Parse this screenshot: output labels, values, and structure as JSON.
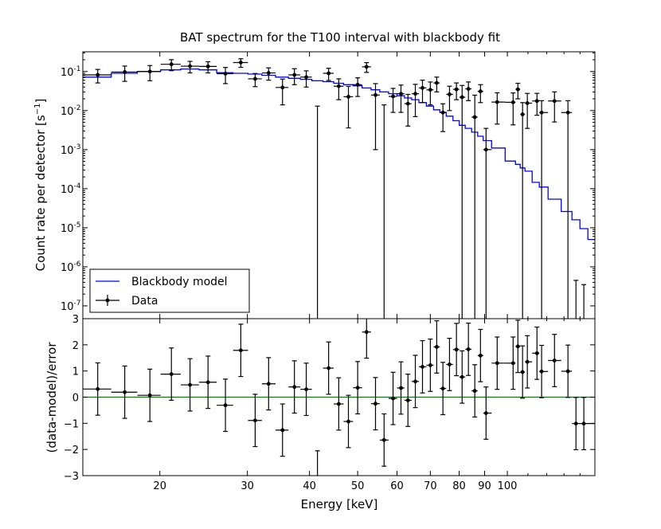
{
  "chart_data": {
    "type": "scatter",
    "title": "BAT spectrum for the T100 interval with blackbody fit",
    "xlabel": "Energy [keV]",
    "xscale": "log",
    "xlim": [
      14,
      150
    ],
    "x_ticks": [
      {
        "value": 20,
        "label": "20"
      },
      {
        "value": 30,
        "label": "30"
      },
      {
        "value": 40,
        "label": "40"
      },
      {
        "value": 50,
        "label": "50"
      },
      {
        "value": 60,
        "label": "60"
      },
      {
        "value": 70,
        "label": "70"
      },
      {
        "value": 80,
        "label": "80"
      },
      {
        "value": 90,
        "label": "90"
      },
      {
        "value": 100,
        "label": "100"
      }
    ],
    "colors": {
      "model": "#0000ff",
      "zero_line": "#008000",
      "data": "#000000"
    },
    "top_panel": {
      "ylabel": "Count rate per detector [s",
      "ylabel_exp": "−1",
      "ylabel_end": "]",
      "yscale": "log",
      "ylim": [
        4.7e-08,
        0.32
      ],
      "y_ticks": [
        {
          "value": 0.1,
          "base": "10",
          "exp": "-1"
        },
        {
          "value": 0.01,
          "base": "10",
          "exp": "-2"
        },
        {
          "value": 0.001,
          "base": "10",
          "exp": "-3"
        },
        {
          "value": 0.0001,
          "base": "10",
          "exp": "-4"
        },
        {
          "value": 1e-05,
          "base": "10",
          "exp": "-5"
        },
        {
          "value": 1e-06,
          "base": "10",
          "exp": "-6"
        },
        {
          "value": 1e-07,
          "base": "10",
          "exp": "-7"
        }
      ],
      "legend": {
        "placement": "lower-left",
        "entries": [
          {
            "label": "Blackbody model",
            "kind": "line"
          },
          {
            "label": "Data",
            "kind": "errorbar"
          }
        ]
      }
    },
    "bottom_panel": {
      "ylabel": "(data-model)/error",
      "ylim": [
        -3,
        3
      ],
      "y_ticks": [
        {
          "value": -3,
          "label": "−3"
        },
        {
          "value": -2,
          "label": "−2"
        },
        {
          "value": -1,
          "label": "−1"
        },
        {
          "value": 0,
          "label": "0"
        },
        {
          "value": 1,
          "label": "1"
        },
        {
          "value": 2,
          "label": "2"
        },
        {
          "value": 3,
          "label": "3"
        }
      ],
      "zero_line": 0
    },
    "data": {
      "energy": [
        15.0,
        17.0,
        19.1,
        21.1,
        23.0,
        25.0,
        27.1,
        29.1,
        31.1,
        33.1,
        35.3,
        37.3,
        39.4,
        41.5,
        43.7,
        45.8,
        47.9,
        50.0,
        52.1,
        54.3,
        56.5,
        58.9,
        61.1,
        63.1,
        65.3,
        67.5,
        70.0,
        72.1,
        74.2,
        76.5,
        79.0,
        81.1,
        83.5,
        86.0,
        88.3,
        90.6,
        95.4,
        102.7,
        105.0,
        107.3,
        109.7,
        114.7,
        117.2,
        124.4,
        132.4,
        137.4,
        142.5
      ],
      "rate": [
        0.082,
        0.097,
        0.1,
        0.153,
        0.137,
        0.135,
        0.088,
        0.17,
        0.065,
        0.092,
        0.039,
        0.082,
        0.072,
        -0.01,
        0.09,
        0.042,
        0.0226,
        0.046,
        0.132,
        0.025,
        -0.005,
        0.023,
        0.027,
        0.015,
        0.027,
        0.038,
        0.034,
        0.051,
        0.0089,
        0.026,
        0.035,
        0.022,
        0.036,
        0.0068,
        0.031,
        0.001,
        0.0165,
        0.0163,
        0.035,
        0.008,
        0.0155,
        0.0176,
        0.0089,
        0.0176,
        0.0089,
        -1e-06,
        -1e-06
      ],
      "rate_err": [
        0.031,
        0.041,
        0.042,
        0.048,
        0.045,
        0.043,
        0.039,
        0.042,
        0.024,
        0.032,
        0.025,
        0.036,
        0.032,
        0.023,
        0.031,
        0.023,
        0.019,
        0.023,
        0.037,
        0.024,
        0.019,
        0.014,
        0.018,
        0.011,
        0.02,
        0.022,
        0.02,
        0.021,
        0.006,
        0.016,
        0.016,
        0.022,
        0.018,
        0.018,
        0.015,
        0.0025,
        0.012,
        0.012,
        0.015,
        0.008,
        0.012,
        0.01,
        0.009,
        0.0125,
        0.009,
        1.45e-06,
        1.35e-06
      ],
      "residual": [
        0.31,
        0.19,
        0.07,
        0.88,
        0.47,
        0.57,
        -0.31,
        1.79,
        -0.89,
        0.51,
        -1.26,
        0.39,
        0.3,
        -3.05,
        1.11,
        -0.26,
        -0.93,
        0.36,
        2.49,
        -0.25,
        -1.64,
        -0.05,
        0.35,
        -0.12,
        0.6,
        1.16,
        1.22,
        1.92,
        0.33,
        1.25,
        1.82,
        0.77,
        1.83,
        0.24,
        1.59,
        -0.61,
        1.3,
        1.3,
        1.94,
        0.96,
        1.35,
        1.68,
        0.98,
        1.4,
        0.99,
        -1.01,
        -1.01
      ],
      "residual_err": 1
    },
    "model": {
      "energy": [
        15.0,
        17.0,
        19.1,
        21.1,
        23.0,
        25.0,
        27.1,
        29.1,
        31.1,
        33.1,
        35.3,
        37.3,
        39.4,
        41.5,
        43.7,
        45.8,
        47.9,
        50.0,
        52.1,
        54.3,
        56.5,
        58.9,
        61.1,
        63.1,
        65.3,
        67.5,
        70.0,
        72.1,
        74.2,
        76.5,
        79.0,
        81.1,
        83.5,
        86.0,
        88.3,
        90.6,
        95.4,
        102.7,
        105.0,
        107.3,
        109.7,
        114.7,
        117.2,
        124.4,
        132.4,
        137.4,
        142.5,
        148.0
      ],
      "rate": [
        0.072,
        0.09,
        0.1,
        0.11,
        0.116,
        0.11,
        0.093,
        0.09,
        0.086,
        0.08,
        0.072,
        0.067,
        0.063,
        0.058,
        0.055,
        0.05,
        0.046,
        0.043,
        0.038,
        0.034,
        0.03,
        0.027,
        0.024,
        0.021,
        0.019,
        0.016,
        0.013,
        0.0105,
        0.009,
        0.0072,
        0.0055,
        0.0042,
        0.0035,
        0.0028,
        0.0022,
        0.0017,
        0.0011,
        0.00051,
        0.00042,
        0.00034,
        0.00028,
        0.000145,
        0.00011,
        5.4e-05,
        2.6e-05,
        1.6e-05,
        9.5e-06,
        5e-06
      ]
    }
  }
}
